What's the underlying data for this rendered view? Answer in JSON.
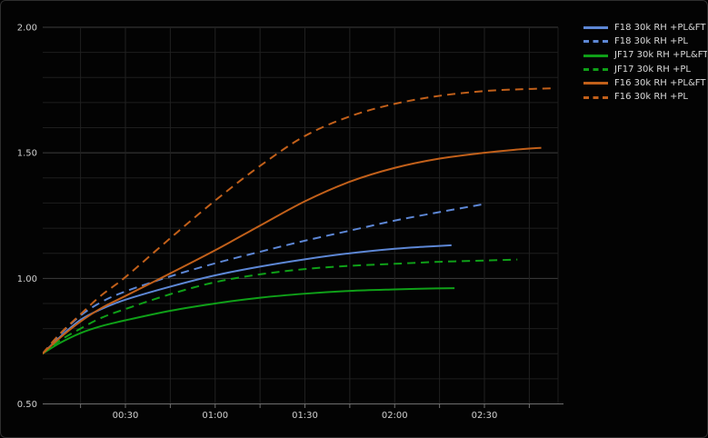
{
  "page": {
    "background": "#030303",
    "title": ""
  },
  "colors": {
    "grid_minor": "#1e1e1e",
    "grid_major": "#3e3e3e",
    "axis_line": "#6f6f6f",
    "tick_label": "#cfcfcf",
    "legend_text": "#d9d9d9",
    "blue": "#5d87d5",
    "green": "#0fa018",
    "orange": "#c2601a"
  },
  "chart_data": {
    "type": "line",
    "title": "",
    "xlabel": "",
    "ylabel": "",
    "grid": "on",
    "legend_position": "right",
    "x_axis": {
      "unit": "elapsed time (hh:mm)",
      "range_min": [
        0,
        175
      ],
      "major_ticks_min": [
        30,
        60,
        90,
        120,
        150
      ],
      "major_tick_labels": [
        "00:30",
        "01:00",
        "01:30",
        "02:00",
        "02:30"
      ],
      "minor_grid_step_min": 15
    },
    "y_axis": {
      "range": [
        0.5,
        2.0
      ],
      "major_ticks": [
        0.5,
        1.0,
        1.5,
        2.0
      ],
      "major_tick_labels": [
        "0.50",
        "1.00",
        "1.50",
        "2.00"
      ],
      "minor_grid_step": 0.1
    },
    "series": [
      {
        "name": "F18 30k RH +PL&FT",
        "color": "#5d87d5",
        "style": "solid",
        "points": [
          [
            2.3,
            0.7
          ],
          [
            8,
            0.765
          ],
          [
            15,
            0.835
          ],
          [
            22,
            0.878
          ],
          [
            30,
            0.915
          ],
          [
            45,
            0.967
          ],
          [
            60,
            1.012
          ],
          [
            75,
            1.047
          ],
          [
            90,
            1.076
          ],
          [
            105,
            1.1
          ],
          [
            120,
            1.118
          ],
          [
            130,
            1.126
          ],
          [
            139,
            1.132
          ]
        ]
      },
      {
        "name": "F18 30k RH +PL",
        "color": "#5d87d5",
        "style": "dashed",
        "points": [
          [
            2.3,
            0.7
          ],
          [
            8,
            0.775
          ],
          [
            15,
            0.852
          ],
          [
            22,
            0.906
          ],
          [
            30,
            0.948
          ],
          [
            45,
            1.008
          ],
          [
            60,
            1.06
          ],
          [
            75,
            1.106
          ],
          [
            90,
            1.15
          ],
          [
            105,
            1.19
          ],
          [
            120,
            1.23
          ],
          [
            135,
            1.264
          ],
          [
            150,
            1.296
          ]
        ]
      },
      {
        "name": "JF17 30k RH +PL&FT",
        "color": "#0fa018",
        "style": "solid",
        "points": [
          [
            2.3,
            0.7
          ],
          [
            8,
            0.742
          ],
          [
            15,
            0.782
          ],
          [
            22,
            0.81
          ],
          [
            30,
            0.833
          ],
          [
            45,
            0.871
          ],
          [
            60,
            0.9
          ],
          [
            75,
            0.923
          ],
          [
            90,
            0.939
          ],
          [
            105,
            0.95
          ],
          [
            120,
            0.956
          ],
          [
            130,
            0.959
          ],
          [
            140,
            0.961
          ]
        ]
      },
      {
        "name": "JF17 30k RH +PL",
        "color": "#0fa018",
        "style": "dashed",
        "points": [
          [
            2.3,
            0.7
          ],
          [
            8,
            0.752
          ],
          [
            15,
            0.8
          ],
          [
            22,
            0.843
          ],
          [
            30,
            0.878
          ],
          [
            45,
            0.937
          ],
          [
            60,
            0.985
          ],
          [
            75,
            1.016
          ],
          [
            90,
            1.037
          ],
          [
            105,
            1.05
          ],
          [
            120,
            1.058
          ],
          [
            135,
            1.066
          ],
          [
            150,
            1.071
          ],
          [
            161,
            1.075
          ]
        ]
      },
      {
        "name": "F16 30k RH +PL&FT",
        "color": "#c2601a",
        "style": "solid",
        "points": [
          [
            2.3,
            0.7
          ],
          [
            8,
            0.762
          ],
          [
            15,
            0.828
          ],
          [
            22,
            0.882
          ],
          [
            30,
            0.93
          ],
          [
            45,
            1.02
          ],
          [
            60,
            1.112
          ],
          [
            75,
            1.21
          ],
          [
            90,
            1.307
          ],
          [
            105,
            1.385
          ],
          [
            120,
            1.44
          ],
          [
            135,
            1.477
          ],
          [
            150,
            1.5
          ],
          [
            160,
            1.512
          ],
          [
            169,
            1.52
          ]
        ]
      },
      {
        "name": "F16 30k RH +PL",
        "color": "#c2601a",
        "style": "dashed",
        "points": [
          [
            2.3,
            0.7
          ],
          [
            8,
            0.778
          ],
          [
            15,
            0.857
          ],
          [
            22,
            0.933
          ],
          [
            30,
            1.005
          ],
          [
            45,
            1.16
          ],
          [
            60,
            1.31
          ],
          [
            75,
            1.448
          ],
          [
            90,
            1.567
          ],
          [
            105,
            1.645
          ],
          [
            120,
            1.695
          ],
          [
            135,
            1.727
          ],
          [
            150,
            1.746
          ],
          [
            162,
            1.753
          ],
          [
            173,
            1.757
          ]
        ]
      }
    ]
  }
}
